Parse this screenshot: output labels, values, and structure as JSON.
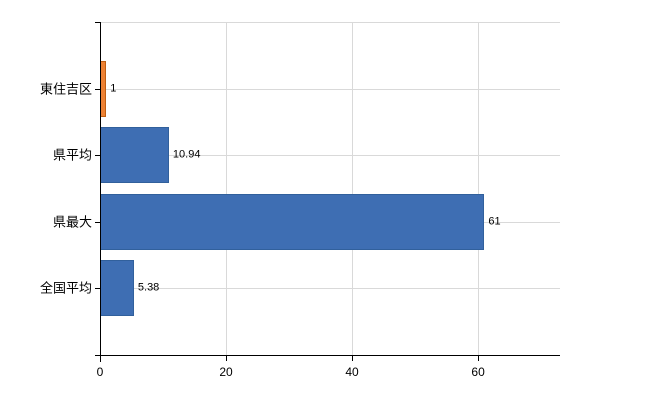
{
  "chart_data": {
    "type": "bar",
    "orientation": "horizontal",
    "title": "",
    "xlabel": "",
    "ylabel": "",
    "categories": [
      "東住吉区",
      "県平均",
      "県最大",
      "全国平均"
    ],
    "values": [
      1,
      10.94,
      61,
      5.38
    ],
    "value_labels": [
      "1",
      "10.94",
      "61",
      "5.38"
    ],
    "bar_colors": [
      "#ED8133",
      "#3E6EB3",
      "#3E6EB3",
      "#3E6EB3"
    ],
    "bar_border_colors": [
      "#BE5E12",
      "#31609C",
      "#31609C",
      "#31609C"
    ],
    "x_ticks": [
      0,
      20,
      40,
      60
    ],
    "xlim": [
      0,
      73
    ],
    "grid": true,
    "legend": "none",
    "colors": {
      "grid": "#D9D9D9",
      "axis": "#000000",
      "text": "#000000",
      "background": "#FFFFFF"
    }
  }
}
